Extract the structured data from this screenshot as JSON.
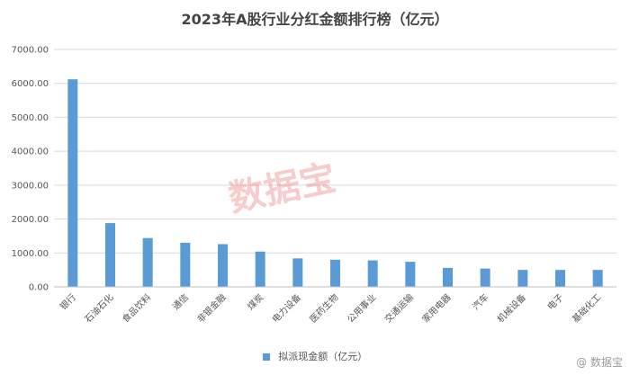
{
  "colors": {
    "bar": "#5b9bd5",
    "grid": "#d9d9d9",
    "watermark": "#e85f5f"
  },
  "watermark_text": "数据宝",
  "brand_text": "@ 数据宝",
  "chart_data": {
    "type": "bar",
    "title": "2023年A股行业分红金额排行榜（亿元）",
    "xlabel": "",
    "ylabel": "",
    "ylim": [
      0,
      7000
    ],
    "yticks": [
      "0.00",
      "1000.00",
      "2000.00",
      "3000.00",
      "4000.00",
      "5000.00",
      "6000.00",
      "7000.00"
    ],
    "grid": true,
    "legend_position": "bottom",
    "categories": [
      "银行",
      "石油石化",
      "食品饮料",
      "通信",
      "非银金融",
      "煤炭",
      "电力设备",
      "医药生物",
      "公用事业",
      "交通运输",
      "家用电器",
      "汽车",
      "机械设备",
      "电子",
      "基础化工"
    ],
    "series": [
      {
        "name": "拟派现金额（亿元）",
        "values": [
          6120,
          1880,
          1440,
          1300,
          1260,
          1040,
          840,
          800,
          780,
          740,
          560,
          540,
          500,
          500,
          500
        ]
      }
    ]
  }
}
